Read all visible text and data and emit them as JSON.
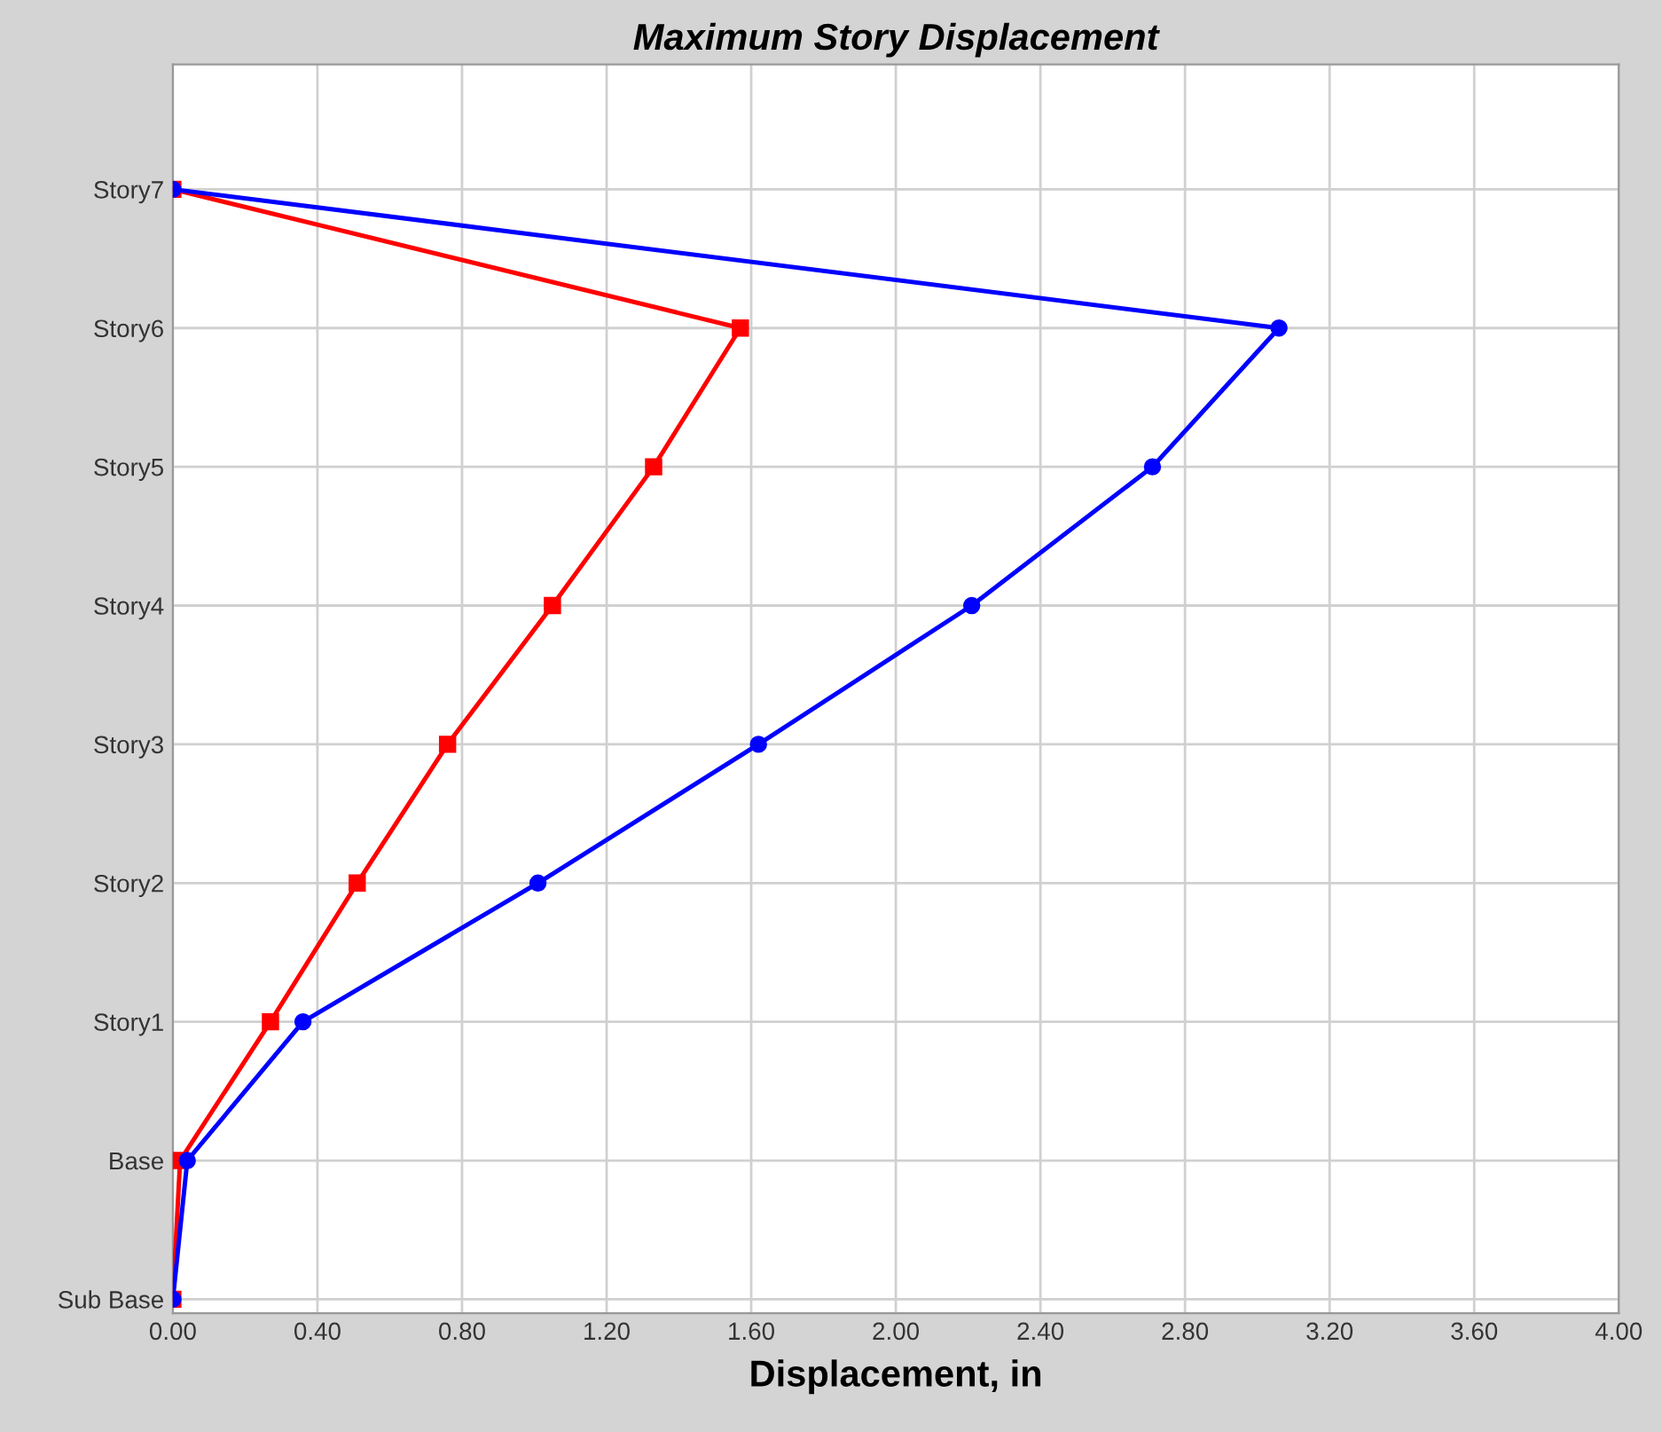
{
  "chart_data": {
    "type": "line",
    "orientation": "horizontal",
    "title": "Maximum Story Displacement",
    "xlabel": "Displacement, in",
    "xlim": [
      0,
      4
    ],
    "xticks": [
      {
        "value": 0,
        "label": "0.00"
      },
      {
        "value": 0.4,
        "label": "0.40"
      },
      {
        "value": 0.8,
        "label": "0.80"
      },
      {
        "value": 1.2,
        "label": "1.20"
      },
      {
        "value": 1.6,
        "label": "1.60"
      },
      {
        "value": 2.0,
        "label": "2.00"
      },
      {
        "value": 2.4,
        "label": "2.40"
      },
      {
        "value": 2.8,
        "label": "2.80"
      },
      {
        "value": 3.2,
        "label": "3.20"
      },
      {
        "value": 3.6,
        "label": "3.60"
      },
      {
        "value": 4.0,
        "label": "4.00"
      }
    ],
    "categories": [
      "Story7",
      "Story6",
      "Story5",
      "Story4",
      "Story3",
      "Story2",
      "Story1",
      "Base",
      "Sub Base"
    ],
    "grid": true,
    "series": [
      {
        "color": "#0000ff",
        "marker": "circle",
        "values": [
          0.0,
          3.06,
          2.71,
          2.21,
          1.62,
          1.01,
          0.36,
          0.04,
          0
        ]
      },
      {
        "color": "#ff0000",
        "marker": "square",
        "values": [
          0.0,
          1.57,
          1.33,
          1.05,
          0.76,
          0.51,
          0.27,
          0.02,
          0
        ]
      }
    ]
  }
}
